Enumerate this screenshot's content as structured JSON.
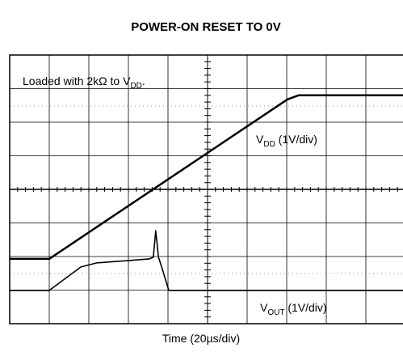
{
  "chart_data": {
    "type": "line",
    "title": "POWER-ON RESET TO 0V",
    "x_label": "Time (20µs/div)",
    "xlim": [
      0,
      10
    ],
    "ylim": [
      0,
      8
    ],
    "annotations": [
      {
        "text": "Loaded with 2kΩ to V",
        "sub": "DD",
        "rest": "."
      },
      {
        "text": "V",
        "sub": "DD",
        "rest": " (1V/div)"
      },
      {
        "text": "V",
        "sub": "OUT",
        "rest": " (1V/div)"
      }
    ],
    "series": [
      {
        "color": "#000000",
        "x": [
          0,
          1,
          7.02,
          7.3,
          10
        ],
        "values": [
          1.93,
          1.93,
          6.68,
          6.8,
          6.8
        ]
      },
      {
        "color": "#000000",
        "x": [
          0,
          1,
          1.8,
          2.2,
          3.02,
          3.53,
          3.63,
          3.69,
          3.76,
          3.84,
          4.02,
          10
        ],
        "values": [
          0.99,
          0.99,
          1.69,
          1.81,
          1.88,
          1.93,
          1.98,
          2.77,
          1.98,
          1.69,
          0.99,
          0.99
        ]
      }
    ]
  }
}
